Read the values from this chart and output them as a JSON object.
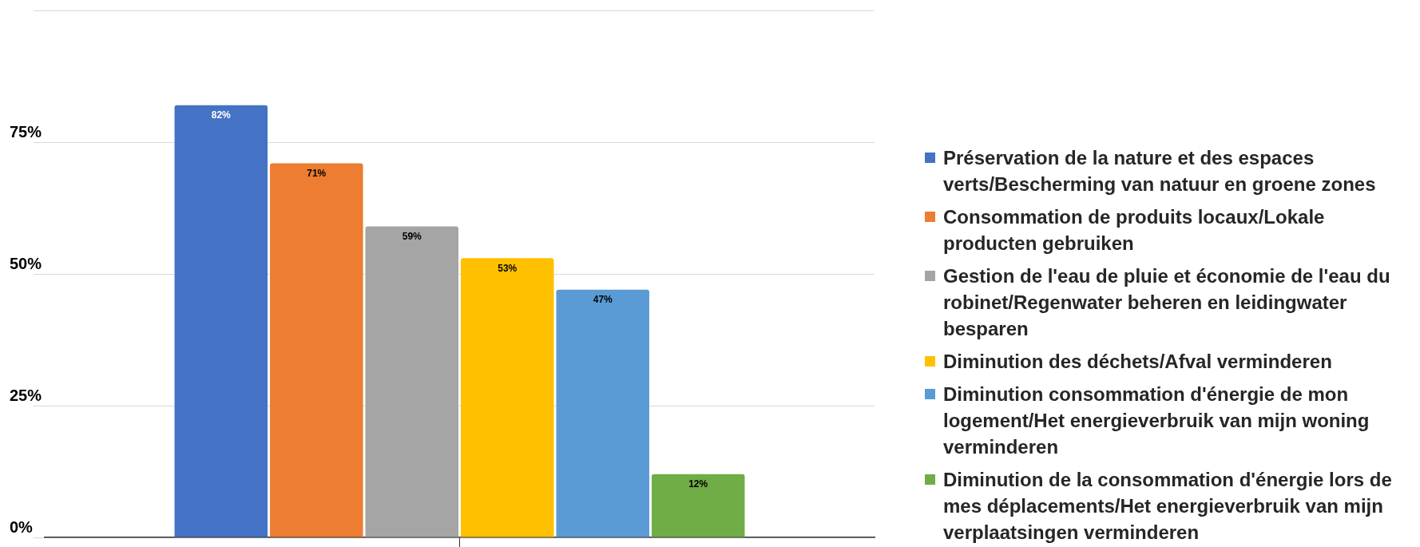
{
  "chart_data": {
    "type": "bar",
    "categories": [
      null
    ],
    "series": [
      {
        "name": "Préservation de la nature et des espaces verts/Bescherming van natuur en groene zones",
        "color": "#4472c4",
        "values": [
          82
        ],
        "value_labels": [
          "82%"
        ]
      },
      {
        "name": "Consommation de produits locaux/Lokale producten gebruiken",
        "color": "#ed7d31",
        "values": [
          71
        ],
        "value_labels": [
          "71%"
        ]
      },
      {
        "name": "Gestion de l'eau de pluie et économie de l'eau du robinet/Regenwater beheren en leidingwater besparen",
        "color": "#a5a5a5",
        "values": [
          59
        ],
        "value_labels": [
          "59%"
        ]
      },
      {
        "name": "Diminution des déchets/Afval verminderen",
        "color": "#ffc000",
        "values": [
          53
        ],
        "value_labels": [
          "53%"
        ]
      },
      {
        "name": "Diminution consommation d'énergie de mon logement/Het energieverbruik van mijn woning verminderen",
        "color": "#5b9bd5",
        "values": [
          47
        ],
        "value_labels": [
          "47%"
        ]
      },
      {
        "name": "Diminution de la consommation d'énergie lors de mes déplacements/Het energieverbruik van mijn verplaatsingen verminderen",
        "color": "#70ad47",
        "values": [
          12
        ],
        "value_labels": [
          "12%"
        ]
      }
    ],
    "ylim": [
      0,
      100
    ],
    "yticks": [
      {
        "value": 0,
        "label": "0%"
      },
      {
        "value": 25,
        "label": "25%"
      },
      {
        "value": 50,
        "label": "50%"
      },
      {
        "value": 75,
        "label": "75%"
      },
      {
        "value": 100,
        "label": null
      }
    ],
    "grid": "y",
    "legend": "right"
  }
}
